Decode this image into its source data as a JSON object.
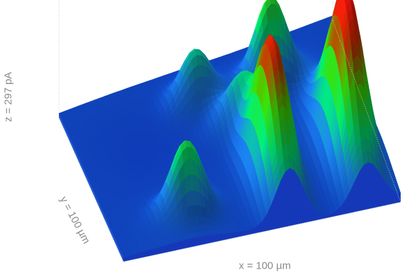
{
  "chart_data": {
    "type": "surface-3d",
    "xlabel": "x = 100 µm",
    "ylabel": "y = 100 µm",
    "zlabel": "z = 297 pA",
    "x_range": [
      0,
      100
    ],
    "y_range": [
      0,
      100
    ],
    "z_range": [
      0,
      297
    ],
    "grid": false,
    "colormap": [
      "#1040c8",
      "#1a7ee0",
      "#00e070",
      "#3ad000",
      "#c03000",
      "#ff1010"
    ],
    "peaks": [
      {
        "x": 27,
        "y": 18,
        "height": 130
      },
      {
        "x": 60,
        "y": 25,
        "height": 260
      },
      {
        "x": 88,
        "y": 30,
        "height": 297
      },
      {
        "x": 72,
        "y": 78,
        "height": 150
      },
      {
        "x": 45,
        "y": 80,
        "height": 95
      },
      {
        "x": 55,
        "y": 60,
        "height": 60
      }
    ]
  }
}
